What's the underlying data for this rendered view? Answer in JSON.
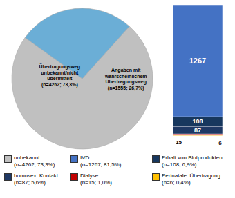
{
  "chart_data": [
    {
      "type": "pie",
      "categories": [
        "unbekannt\n(n=4262; 73,3%)",
        null
      ],
      "values": [
        4262,
        1555
      ],
      "colors": [
        "#c0c0c0",
        "#6baed6"
      ],
      "annotations": [
        "Übertragungsweg\nunbekannt/nicht\nübermittelt\n(n=4262; 73,3%)",
        "Angaben mit\nwahrscheinlichem\nÜbertragungsweg\n(n=1555; 26,7%)"
      ],
      "legend": "bottom"
    },
    {
      "type": "bar",
      "stacked": true,
      "categories": [
        null
      ],
      "series": [
        {
          "name": "IVD\n(n=1267; 81,5%)",
          "color": "#4472c4",
          "values": [
            1267
          ]
        },
        {
          "name": "Erhalt von Blutprodukten\n(n=108; 6,9%)",
          "color": "#17375e",
          "values": [
            108
          ]
        },
        {
          "name": "homosex. Kontakt\n(n=87; 5,6%)",
          "color": "#1f3864",
          "values": [
            87
          ]
        },
        {
          "name": "Dialyse\n(n=15; 1,0%)",
          "color": "#c00000",
          "values": [
            15
          ]
        },
        {
          "name": "Perinatale  Übertragung\n(n=6; 0,4%)",
          "color": "#ffc000",
          "values": [
            6
          ]
        }
      ],
      "ylim": [
        0,
        1483
      ],
      "tick_labels": false,
      "data_labels": true,
      "legend": "bottom"
    }
  ]
}
